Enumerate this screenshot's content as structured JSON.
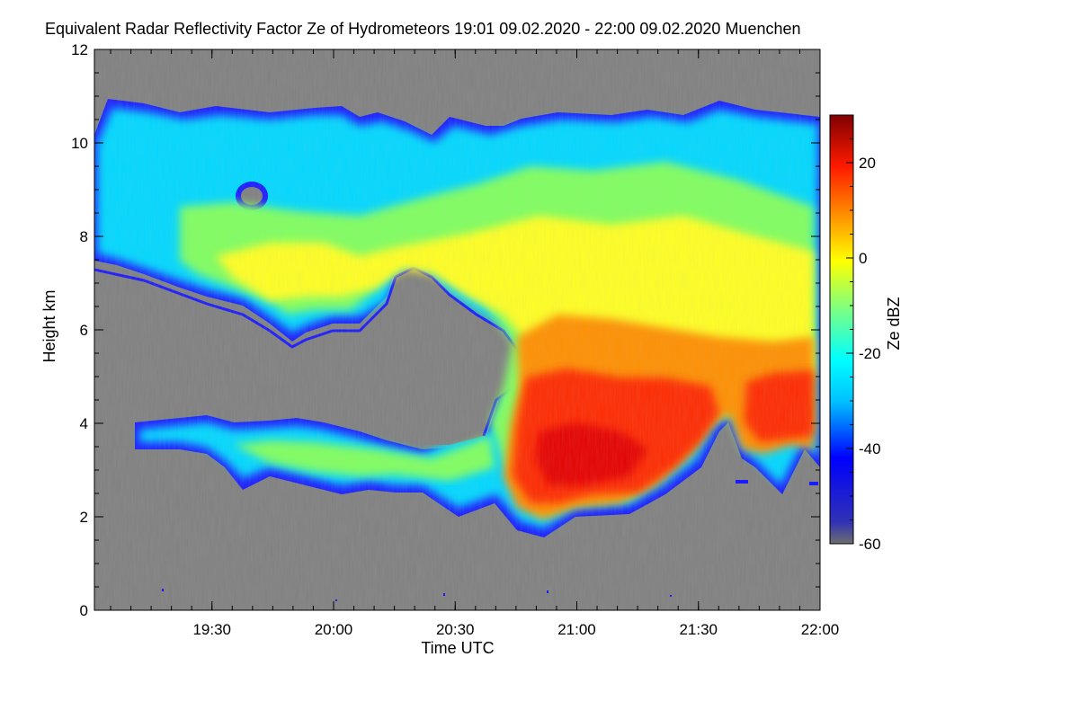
{
  "chart_data": {
    "type": "heatmap",
    "title": "Equivalent Radar Reflectivity Factor Ze of Hydrometeors   19:01 09.02.2020 - 22:00 09.02.2020 Muenchen",
    "xlabel": "Time UTC",
    "ylabel": "Height km",
    "x_ticks": [
      "19:30",
      "20:00",
      "20:30",
      "21:00",
      "21:30",
      "22:00"
    ],
    "x_tick_minutes": [
      29,
      59,
      89,
      119,
      149,
      179
    ],
    "xlim_minutes_after_19_01": [
      0,
      179
    ],
    "y_ticks": [
      0,
      2,
      4,
      6,
      8,
      10,
      12
    ],
    "ylim": [
      0,
      12
    ],
    "colorbar": {
      "label": "Ze dBZ",
      "ticks": [
        20,
        0,
        -20,
        -40,
        -60
      ],
      "range": [
        -60,
        30
      ]
    },
    "no_data_color": "#808080",
    "colormap": [
      "#6e6e6e",
      "#0000c8",
      "#0000ff",
      "#00bfff",
      "#00ffff",
      "#7fff7f",
      "#ffff00",
      "#ff8000",
      "#ff0000",
      "#b40000",
      "#800000"
    ]
  }
}
